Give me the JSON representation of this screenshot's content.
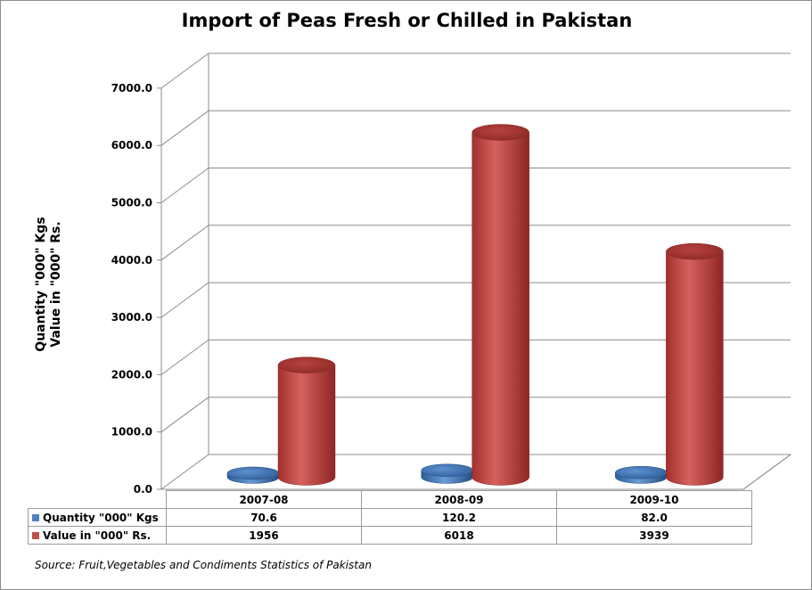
{
  "chart_data": {
    "type": "bar",
    "title": "Import of Peas Fresh or Chilled in Pakistan",
    "ylabel_lines": [
      "Quantity \"000\" Kgs",
      "Value in \"000\" Rs."
    ],
    "xlabel": "",
    "categories": [
      "2007-08",
      "2008-09",
      "2009-10"
    ],
    "ylim": [
      0,
      7000
    ],
    "yticks": [
      "0.0",
      "1000.0",
      "2000.0",
      "3000.0",
      "4000.0",
      "5000.0",
      "6000.0",
      "7000.0"
    ],
    "grid": true,
    "style": "3d-cylinder",
    "legend": "data-table",
    "series": [
      {
        "name": "Quantity \"000\" Kgs",
        "values": [
          70.6,
          120.2,
          82.0
        ],
        "labels": [
          "70.6",
          "120.2",
          "82.0"
        ],
        "color": "#4f81bd"
      },
      {
        "name": "Value in \"000\" Rs.",
        "values": [
          1956,
          6018,
          3939
        ],
        "labels": [
          "1956",
          "6018",
          "3939"
        ],
        "color": "#c0504d"
      }
    ]
  },
  "source_note": "Source: Fruit,Vegetables and Condiments Statistics of Pakistan"
}
